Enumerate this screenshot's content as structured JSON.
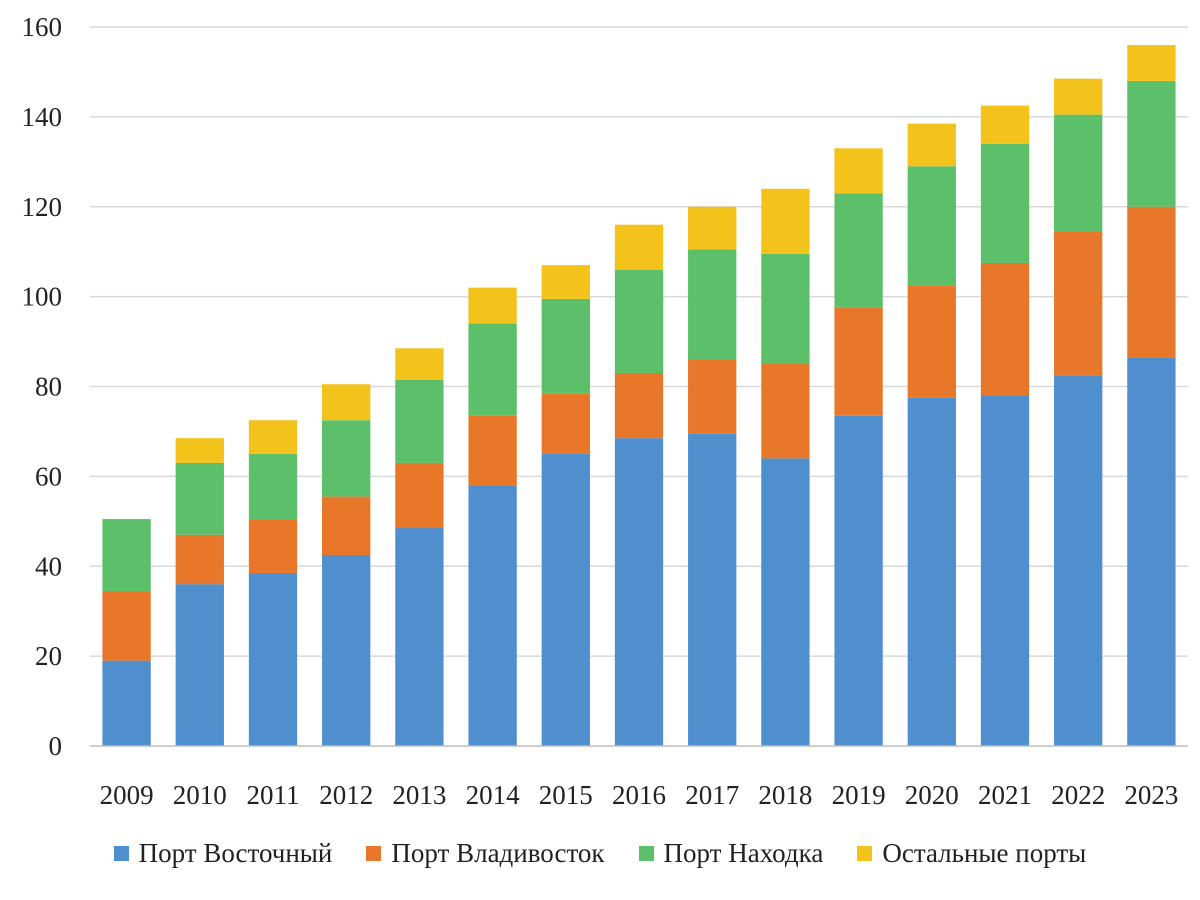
{
  "chart_data": {
    "type": "bar",
    "stacked": true,
    "categories": [
      "2009",
      "2010",
      "2011",
      "2012",
      "2013",
      "2014",
      "2015",
      "2016",
      "2017",
      "2018",
      "2019",
      "2020",
      "2021",
      "2022",
      "2023"
    ],
    "series": [
      {
        "name": "Порт Восточный",
        "color": "#4f8fcd",
        "values": [
          19,
          36,
          38.5,
          42.5,
          48.5,
          58,
          65,
          68.5,
          69.5,
          64,
          73.5,
          77.5,
          78,
          82.5,
          86.5
        ]
      },
      {
        "name": "Порт Владивосток",
        "color": "#e8772a",
        "values": [
          15.5,
          11,
          12,
          13,
          14.5,
          15.5,
          13.5,
          14.5,
          16.5,
          21,
          24,
          25,
          29.5,
          32,
          33.5
        ]
      },
      {
        "name": "Порт Находка",
        "color": "#5cbf6a",
        "values": [
          16,
          16,
          14.5,
          17,
          18.5,
          20.5,
          21,
          23,
          24.5,
          24.5,
          25.5,
          26.5,
          26.5,
          26,
          28
        ]
      },
      {
        "name": "Остальные порты",
        "color": "#f3c21b",
        "values": [
          0,
          5.5,
          7.5,
          8,
          7,
          8,
          7.5,
          10,
          9.5,
          14.5,
          10,
          9.5,
          8.5,
          8,
          8
        ]
      }
    ],
    "ylim": [
      0,
      160
    ],
    "yticks": [
      "0",
      "20",
      "40",
      "60",
      "80",
      "100",
      "120",
      "140",
      "160"
    ],
    "grid": true,
    "legend_position": "bottom",
    "title": "",
    "xlabel": "",
    "ylabel": ""
  }
}
